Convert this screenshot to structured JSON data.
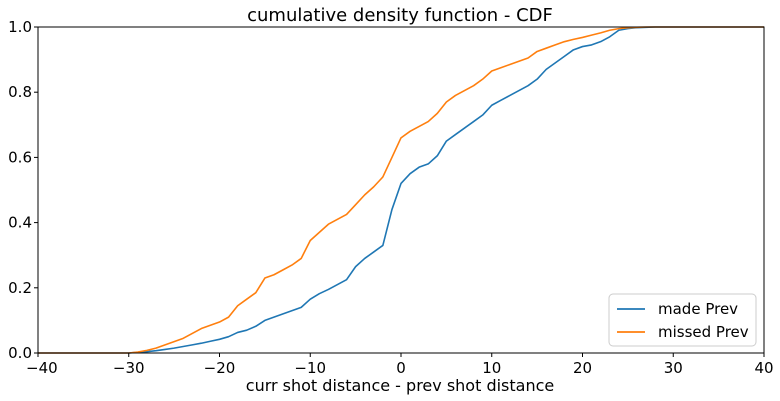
{
  "chart_data": {
    "type": "line",
    "title": "cumulative density function - CDF",
    "xlabel": "curr shot distance - prev shot distance",
    "ylabel": "",
    "xlim": [
      -40,
      40
    ],
    "ylim": [
      0.0,
      1.0
    ],
    "xticks": [
      -40,
      -30,
      -20,
      -10,
      0,
      10,
      20,
      30,
      40
    ],
    "xtick_labels": [
      "−40",
      "−30",
      "−20",
      "−10",
      "0",
      "10",
      "20",
      "30",
      "40"
    ],
    "yticks": [
      0.0,
      0.2,
      0.4,
      0.6,
      0.8,
      1.0
    ],
    "ytick_labels": [
      "0.0",
      "0.2",
      "0.4",
      "0.6",
      "0.8",
      "1.0"
    ],
    "grid": false,
    "legend_position": "lower-right",
    "series": [
      {
        "name": "made Prev",
        "color": "#1f77b4",
        "x": [
          -40,
          -30,
          -29,
          -28,
          -27,
          -26,
          -25,
          -24,
          -23,
          -22,
          -21,
          -20,
          -19,
          -18,
          -17,
          -16,
          -15,
          -14,
          -13,
          -12,
          -11,
          -10,
          -9,
          -8,
          -7,
          -6,
          -5,
          -4,
          -3,
          -2,
          -1,
          0,
          1,
          2,
          3,
          4,
          5,
          6,
          7,
          8,
          9,
          10,
          11,
          12,
          13,
          14,
          15,
          16,
          17,
          18,
          19,
          20,
          21,
          22,
          23,
          24,
          25,
          26,
          27,
          28,
          30,
          40
        ],
        "y": [
          0.0,
          0.0,
          0.002,
          0.004,
          0.007,
          0.011,
          0.015,
          0.02,
          0.025,
          0.03,
          0.036,
          0.042,
          0.05,
          0.063,
          0.07,
          0.082,
          0.1,
          0.11,
          0.12,
          0.13,
          0.14,
          0.165,
          0.182,
          0.195,
          0.21,
          0.225,
          0.265,
          0.29,
          0.31,
          0.33,
          0.44,
          0.52,
          0.55,
          0.57,
          0.58,
          0.605,
          0.65,
          0.67,
          0.69,
          0.71,
          0.73,
          0.76,
          0.775,
          0.79,
          0.805,
          0.82,
          0.84,
          0.87,
          0.89,
          0.91,
          0.93,
          0.94,
          0.945,
          0.955,
          0.97,
          0.99,
          0.995,
          0.998,
          0.999,
          1.0,
          1.0,
          1.0
        ]
      },
      {
        "name": "missed Prev",
        "color": "#ff7f0e",
        "x": [
          -40,
          -30,
          -29,
          -28,
          -27,
          -26,
          -25,
          -24,
          -23,
          -22,
          -21,
          -20,
          -19,
          -18,
          -17,
          -16,
          -15,
          -14,
          -13,
          -12,
          -11,
          -10,
          -9,
          -8,
          -7,
          -6,
          -5,
          -4,
          -3,
          -2,
          -1,
          0,
          1,
          2,
          3,
          4,
          5,
          6,
          7,
          8,
          9,
          10,
          11,
          12,
          13,
          14,
          15,
          16,
          17,
          18,
          19,
          20,
          21,
          22,
          23,
          24,
          25,
          26,
          27,
          28,
          30,
          40
        ],
        "y": [
          0.0,
          0.0,
          0.003,
          0.008,
          0.015,
          0.025,
          0.035,
          0.045,
          0.06,
          0.075,
          0.085,
          0.095,
          0.11,
          0.145,
          0.165,
          0.185,
          0.23,
          0.24,
          0.255,
          0.27,
          0.29,
          0.345,
          0.37,
          0.395,
          0.41,
          0.425,
          0.455,
          0.485,
          0.51,
          0.54,
          0.6,
          0.66,
          0.68,
          0.695,
          0.71,
          0.735,
          0.77,
          0.79,
          0.805,
          0.82,
          0.84,
          0.865,
          0.875,
          0.885,
          0.895,
          0.905,
          0.925,
          0.935,
          0.945,
          0.955,
          0.962,
          0.968,
          0.975,
          0.982,
          0.99,
          0.995,
          0.998,
          0.999,
          1.0,
          1.0,
          1.0,
          1.0
        ]
      }
    ]
  }
}
